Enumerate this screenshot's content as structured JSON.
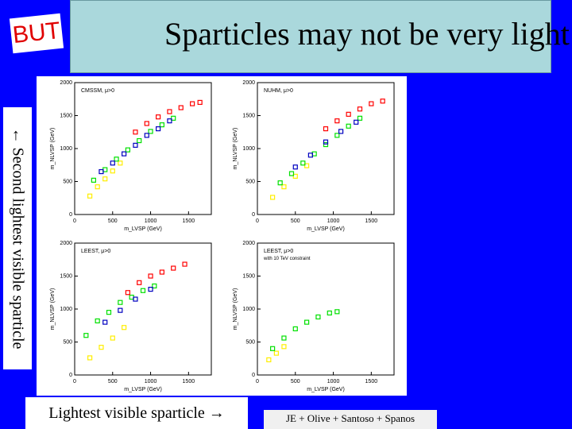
{
  "header": {
    "title": "Sparticles may not be very light",
    "but_label": "BUT"
  },
  "side_label": "← Second lightest visible sparticle",
  "bottom_label": "Lightest visible sparticle →",
  "credit": "JE + Olive + Santoso + Spanos",
  "colors": {
    "background": "#0000ff",
    "title_box": "#aad8dc",
    "but_text": "#e00000"
  },
  "chart_data": [
    {
      "type": "scatter",
      "title": "CMSSM, μ>0",
      "xlabel": "m_LVSP (GeV)",
      "ylabel": "m_NLVSP (GeV)",
      "xlim": [
        0,
        1800
      ],
      "ylim": [
        0,
        2000
      ],
      "x_ticks": [
        "0",
        "500",
        "1000",
        "1500"
      ],
      "y_ticks": [
        "0",
        "500",
        "1000",
        "1500",
        "2000"
      ],
      "series": [
        {
          "color": "#ffee00",
          "points": [
            [
              200,
              280
            ],
            [
              300,
              420
            ],
            [
              400,
              540
            ],
            [
              500,
              660
            ],
            [
              600,
              780
            ]
          ]
        },
        {
          "color": "#00e000",
          "points": [
            [
              250,
              520
            ],
            [
              400,
              680
            ],
            [
              550,
              840
            ],
            [
              700,
              980
            ],
            [
              850,
              1120
            ],
            [
              1000,
              1260
            ],
            [
              1150,
              1360
            ],
            [
              1300,
              1460
            ]
          ]
        },
        {
          "color": "#0000c0",
          "points": [
            [
              350,
              650
            ],
            [
              500,
              780
            ],
            [
              650,
              920
            ],
            [
              800,
              1050
            ],
            [
              950,
              1200
            ],
            [
              1100,
              1300
            ],
            [
              1250,
              1420
            ]
          ]
        },
        {
          "color": "#ff0000",
          "points": [
            [
              800,
              1250
            ],
            [
              950,
              1380
            ],
            [
              1100,
              1480
            ],
            [
              1250,
              1560
            ],
            [
              1400,
              1620
            ],
            [
              1550,
              1680
            ],
            [
              1650,
              1700
            ]
          ]
        }
      ]
    },
    {
      "type": "scatter",
      "title": "NUHM, μ>0",
      "xlabel": "m_LVSP (GeV)",
      "ylabel": "m_NLVSP (GeV)",
      "xlim": [
        0,
        1800
      ],
      "ylim": [
        0,
        2000
      ],
      "x_ticks": [
        "0",
        "500",
        "1000",
        "1500"
      ],
      "y_ticks": [
        "0",
        "500",
        "1000",
        "1500",
        "2000"
      ],
      "series": [
        {
          "color": "#ffee00",
          "points": [
            [
              200,
              260
            ],
            [
              350,
              420
            ],
            [
              500,
              580
            ],
            [
              650,
              740
            ]
          ]
        },
        {
          "color": "#00e000",
          "points": [
            [
              300,
              480
            ],
            [
              450,
              620
            ],
            [
              600,
              780
            ],
            [
              750,
              920
            ],
            [
              900,
              1060
            ],
            [
              1050,
              1200
            ],
            [
              1200,
              1340
            ],
            [
              1350,
              1460
            ]
          ]
        },
        {
          "color": "#0000c0",
          "points": [
            [
              500,
              720
            ],
            [
              700,
              900
            ],
            [
              900,
              1100
            ],
            [
              1100,
              1260
            ],
            [
              1300,
              1400
            ]
          ]
        },
        {
          "color": "#ff0000",
          "points": [
            [
              900,
              1300
            ],
            [
              1050,
              1420
            ],
            [
              1200,
              1520
            ],
            [
              1350,
              1600
            ],
            [
              1500,
              1680
            ],
            [
              1650,
              1720
            ]
          ]
        }
      ]
    },
    {
      "type": "scatter",
      "title": "LEEST, μ>0",
      "xlabel": "m_LVSP (GeV)",
      "ylabel": "m_NLVSP (GeV)",
      "xlim": [
        0,
        1800
      ],
      "ylim": [
        0,
        2000
      ],
      "x_ticks": [
        "0",
        "500",
        "1000",
        "1500"
      ],
      "y_ticks": [
        "0",
        "500",
        "1000",
        "1500",
        "2000"
      ],
      "series": [
        {
          "color": "#ffee00",
          "points": [
            [
              200,
              260
            ],
            [
              350,
              420
            ],
            [
              500,
              560
            ],
            [
              650,
              720
            ]
          ]
        },
        {
          "color": "#00e000",
          "points": [
            [
              150,
              600
            ],
            [
              300,
              820
            ],
            [
              450,
              950
            ],
            [
              600,
              1100
            ],
            [
              750,
              1180
            ],
            [
              900,
              1280
            ],
            [
              1050,
              1350
            ]
          ]
        },
        {
          "color": "#0000c0",
          "points": [
            [
              400,
              800
            ],
            [
              600,
              980
            ],
            [
              800,
              1150
            ],
            [
              1000,
              1300
            ]
          ]
        },
        {
          "color": "#ff0000",
          "points": [
            [
              700,
              1250
            ],
            [
              850,
              1400
            ],
            [
              1000,
              1500
            ],
            [
              1150,
              1560
            ],
            [
              1300,
              1620
            ],
            [
              1450,
              1680
            ]
          ]
        }
      ]
    },
    {
      "type": "scatter",
      "title": "LEEST, μ>0",
      "subtitle": "with 10 TeV constraint",
      "xlabel": "m_LVSP (GeV)",
      "ylabel": "m_NLVSP (GeV)",
      "xlim": [
        0,
        1800
      ],
      "ylim": [
        0,
        2000
      ],
      "x_ticks": [
        "0",
        "500",
        "1000",
        "1500"
      ],
      "y_ticks": [
        "0",
        "500",
        "1000",
        "1500",
        "2000"
      ],
      "series": [
        {
          "color": "#ffee00",
          "points": [
            [
              150,
              230
            ],
            [
              250,
              330
            ],
            [
              350,
              430
            ]
          ]
        },
        {
          "color": "#00e000",
          "points": [
            [
              200,
              400
            ],
            [
              350,
              560
            ],
            [
              500,
              700
            ],
            [
              650,
              800
            ],
            [
              800,
              880
            ],
            [
              950,
              940
            ],
            [
              1050,
              960
            ]
          ]
        }
      ]
    }
  ]
}
